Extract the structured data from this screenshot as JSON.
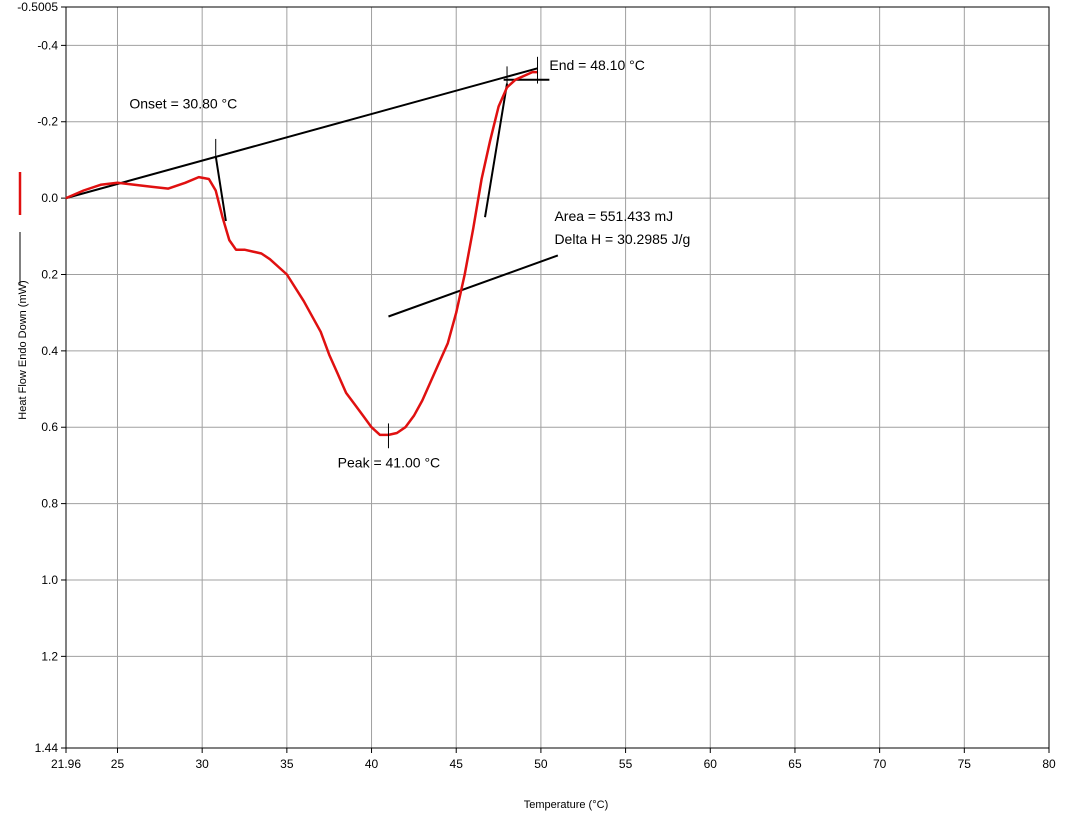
{
  "chart_data": {
    "type": "line",
    "title": "",
    "xlabel": "Temperature (°C)",
    "ylabel": "Heat Flow Endo Down (mW)",
    "xlim": [
      21.96,
      80
    ],
    "ylim": [
      1.44,
      -0.5005
    ],
    "y_inverted": true,
    "grid": true,
    "x_ticks": [
      "21.96",
      "25",
      "30",
      "35",
      "40",
      "45",
      "50",
      "55",
      "60",
      "65",
      "70",
      "75",
      "80"
    ],
    "y_ticks": [
      "-0.5005",
      "-0.4",
      "-0.2",
      "0.0",
      "0.2",
      "0.4",
      "0.6",
      "0.8",
      "1.0",
      "1.2",
      "1.44"
    ],
    "legend": [
      {
        "color": "#e01010",
        "style": "solid"
      },
      {
        "color": "#000000",
        "style": "solid"
      }
    ],
    "series": [
      {
        "color": "#e01010",
        "x": [
          21.96,
          23.0,
          24.0,
          25.0,
          26.0,
          27.0,
          28.0,
          29.0,
          29.8,
          30.4,
          30.8,
          31.2,
          31.6,
          32.0,
          32.5,
          33.0,
          33.5,
          34.0,
          35.0,
          36.0,
          37.0,
          37.5,
          38.0,
          38.5,
          39.0,
          39.5,
          40.0,
          40.5,
          41.0,
          41.5,
          42.0,
          42.5,
          43.0,
          43.5,
          44.0,
          44.5,
          45.0,
          45.5,
          46.0,
          46.5,
          47.0,
          47.5,
          48.0,
          48.5,
          49.0,
          49.5,
          49.8
        ],
        "y": [
          0.0,
          -0.02,
          -0.035,
          -0.04,
          -0.035,
          -0.03,
          -0.025,
          -0.04,
          -0.055,
          -0.05,
          -0.02,
          0.05,
          0.11,
          0.135,
          0.135,
          0.14,
          0.145,
          0.16,
          0.2,
          0.27,
          0.35,
          0.41,
          0.46,
          0.51,
          0.54,
          0.57,
          0.6,
          0.62,
          0.62,
          0.615,
          0.6,
          0.57,
          0.53,
          0.48,
          0.43,
          0.38,
          0.3,
          0.2,
          0.08,
          -0.05,
          -0.15,
          -0.24,
          -0.29,
          -0.31,
          -0.32,
          -0.33,
          -0.33
        ]
      }
    ],
    "lines": [
      {
        "name": "baseline",
        "color": "#000000",
        "x": [
          21.96,
          49.8
        ],
        "y": [
          0.0,
          -0.34
        ]
      },
      {
        "name": "onset-tangent",
        "color": "#000000",
        "x": [
          30.8,
          31.4
        ],
        "y": [
          -0.11,
          0.06
        ]
      },
      {
        "name": "end-tangent",
        "color": "#000000",
        "x": [
          46.7,
          48.0
        ],
        "y": [
          0.05,
          -0.3
        ]
      },
      {
        "name": "area-marker",
        "color": "#000000",
        "x": [
          41.0,
          51.0
        ],
        "y": [
          0.31,
          0.15
        ]
      },
      {
        "name": "end-horizontal",
        "color": "#000000",
        "x": [
          47.8,
          50.5
        ],
        "y": [
          -0.31,
          -0.31
        ]
      }
    ],
    "markers": [
      {
        "name": "onset-marker",
        "x": 30.8,
        "y": [
          -0.155,
          -0.105
        ]
      },
      {
        "name": "peak-marker",
        "x": 41.0,
        "y": [
          0.59,
          0.655
        ]
      },
      {
        "name": "end-marker-1",
        "x": 48.0,
        "y": [
          -0.345,
          -0.295
        ]
      },
      {
        "name": "end-marker-2",
        "x": 49.8,
        "y": [
          -0.37,
          -0.3
        ]
      }
    ],
    "annotations": [
      {
        "name": "onset-annotation",
        "text": "Onset = 30.80 °C",
        "x": 25.7,
        "y": -0.235
      },
      {
        "name": "end-annotation",
        "text": "End = 48.10 °C",
        "x": 50.5,
        "y": -0.335
      },
      {
        "name": "area-annotation",
        "text": "Area = 551.433 mJ",
        "x": 50.8,
        "y": 0.06
      },
      {
        "name": "delta-h-annotation",
        "text": "Delta H = 30.2985 J/g",
        "x": 50.8,
        "y": 0.12
      },
      {
        "name": "peak-annotation",
        "text": "Peak = 41.00 °C",
        "x": 38.0,
        "y": 0.705
      }
    ]
  }
}
